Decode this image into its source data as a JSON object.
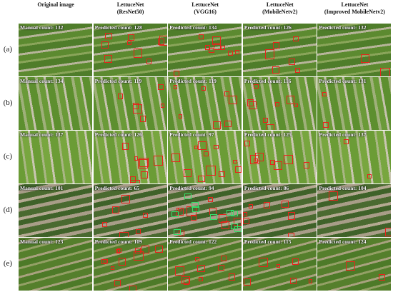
{
  "columns": [
    {
      "lines": [
        "Original image"
      ]
    },
    {
      "lines": [
        "LettuceNet",
        "(ResNet50)"
      ]
    },
    {
      "lines": [
        "LettuceNet",
        "(VGG16)"
      ]
    },
    {
      "lines": [
        "LettuceNet",
        "(MobileNetv2)"
      ]
    },
    {
      "lines": [
        "LettuceNet",
        "(Improved  MobileNetv2)"
      ]
    }
  ],
  "rows": [
    {
      "label": "(a)",
      "cells": [
        "Manual count: 132",
        "Predicted count: 128",
        "Predicted count: 134",
        "Predicted count: 126",
        "Predicted count: 132"
      ]
    },
    {
      "label": "(b)",
      "cells": [
        "Manual count: 134",
        "Predicted count: 119",
        "Predicted count: 119",
        "Predicted count: 116",
        "Predicted count: 131"
      ]
    },
    {
      "label": "(c)",
      "cells": [
        "Manual count: 137",
        "Predicted count: 126",
        "Predicted count: 97",
        "Predicted count: 125",
        "Predicted count: 137"
      ]
    },
    {
      "label": "(d)",
      "cells": [
        "Manual count: 101",
        "Predicted count: 65",
        "Predicted count: 94",
        "Predicted count: 86",
        "Predicted count: 104"
      ]
    },
    {
      "label": "(e)",
      "cells": [
        "Manual count: 123",
        "Predicted count: 109",
        "Predicted count: 122",
        "Predicted count: 115",
        "Predicted count: 124"
      ]
    }
  ]
}
